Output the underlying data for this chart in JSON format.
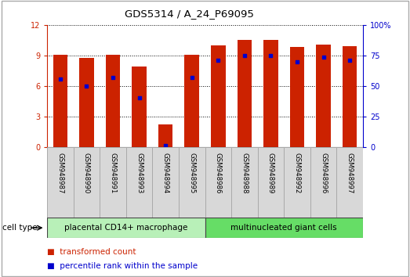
{
  "title": "GDS5314 / A_24_P69095",
  "samples": [
    "GSM948987",
    "GSM948990",
    "GSM948991",
    "GSM948993",
    "GSM948994",
    "GSM948995",
    "GSM948986",
    "GSM948988",
    "GSM948989",
    "GSM948992",
    "GSM948996",
    "GSM948997"
  ],
  "bar_heights": [
    9.05,
    8.75,
    9.1,
    7.9,
    2.2,
    9.05,
    10.0,
    10.5,
    10.5,
    9.8,
    10.1,
    9.9
  ],
  "blue_dot_values_left_scale": [
    6.7,
    6.0,
    6.8,
    4.8,
    0.1,
    6.8,
    8.55,
    9.0,
    9.0,
    8.4,
    8.85,
    8.55
  ],
  "bar_color": "#cc2200",
  "dot_color": "#0000cc",
  "ylim_left": [
    0,
    12
  ],
  "ylim_right": [
    0,
    100
  ],
  "yticks_left": [
    0,
    3,
    6,
    9,
    12
  ],
  "ytick_labels_left": [
    "0",
    "3",
    "6",
    "9",
    "12"
  ],
  "yticks_right": [
    0,
    25,
    50,
    75,
    100
  ],
  "ytick_labels_right": [
    "0",
    "25",
    "50",
    "75",
    "100%"
  ],
  "group1_label": "placental CD14+ macrophage",
  "group2_label": "multinucleated giant cells",
  "group1_count": 6,
  "group2_count": 6,
  "cell_type_label": "cell type",
  "legend_bar_label": "transformed count",
  "legend_dot_label": "percentile rank within the sample",
  "bar_width": 0.55,
  "group1_bg": "#b8f0b8",
  "group2_bg": "#66dd66",
  "xlabel_bg": "#d8d8d8",
  "left_axis_color": "#cc2200",
  "right_axis_color": "#0000cc",
  "figsize": [
    5.23,
    3.54
  ],
  "dpi": 100
}
